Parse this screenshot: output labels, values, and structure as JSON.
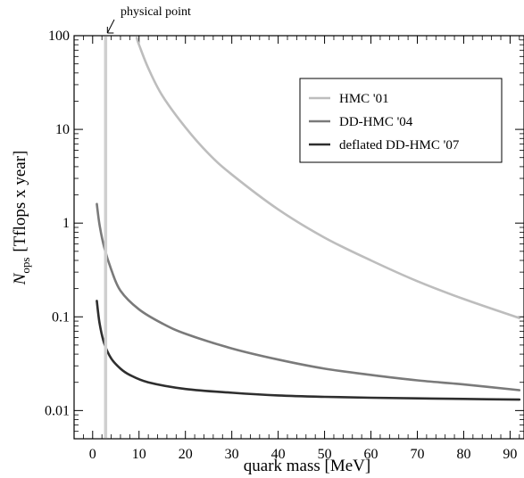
{
  "chart_data": {
    "type": "line",
    "xlabel": "quark mass [MeV]",
    "ylabel": {
      "main": "N",
      "sub": "ops",
      "unit": "[Tflops x year]"
    },
    "xlim": [
      -4,
      93
    ],
    "ylim": [
      0.005,
      100
    ],
    "yscale": "log",
    "grid": false,
    "legend_position": "top-right",
    "x_ticks": [
      0,
      10,
      20,
      30,
      40,
      50,
      60,
      70,
      80,
      90
    ],
    "x_tick_labels": [
      "0",
      "10",
      "20",
      "30",
      "40",
      "50",
      "60",
      "70",
      "80",
      "90"
    ],
    "y_ticks": [
      0.01,
      0.1,
      1,
      10,
      100
    ],
    "y_tick_labels": [
      "0.01",
      "0.1",
      "1",
      "10",
      "100"
    ],
    "annotation": {
      "text": "physical point",
      "x": 2.8,
      "y": 100
    },
    "vertical_marker": {
      "x": 2.8,
      "color": "#cfcfcf"
    },
    "series": [
      {
        "name": "HMC '01",
        "color": "#bdbdbd",
        "x": [
          9.5,
          10,
          12,
          15,
          20,
          25,
          30,
          40,
          50,
          60,
          70,
          80,
          92
        ],
        "y": [
          95,
          80,
          45,
          23,
          10.5,
          5.5,
          3.3,
          1.4,
          0.7,
          0.4,
          0.24,
          0.155,
          0.097
        ]
      },
      {
        "name": "DD-HMC '04",
        "color": "#7a7a7a",
        "x": [
          0.9,
          1.5,
          2.5,
          4,
          6,
          10,
          15,
          20,
          30,
          40,
          50,
          60,
          70,
          80,
          92
        ],
        "y": [
          1.6,
          0.95,
          0.55,
          0.32,
          0.19,
          0.12,
          0.085,
          0.066,
          0.046,
          0.035,
          0.028,
          0.024,
          0.021,
          0.019,
          0.0165
        ]
      },
      {
        "name": "deflated DD-HMC '07",
        "color": "#2e2e2e",
        "x": [
          0.9,
          1.5,
          2.5,
          4,
          6,
          8,
          12,
          20,
          30,
          40,
          50,
          60,
          70,
          80,
          92
        ],
        "y": [
          0.148,
          0.085,
          0.052,
          0.036,
          0.028,
          0.024,
          0.02,
          0.017,
          0.0155,
          0.0145,
          0.014,
          0.0137,
          0.0135,
          0.0133,
          0.0131
        ]
      }
    ]
  }
}
